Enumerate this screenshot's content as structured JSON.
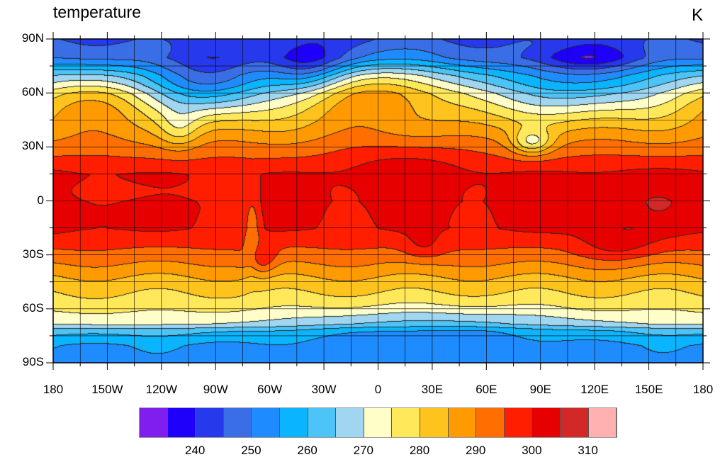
{
  "title": "temperature",
  "units": "K",
  "chart_data": {
    "type": "heatmap",
    "title": "temperature",
    "units": "K",
    "projection": "cylindrical equidistant",
    "lon_range": [
      -180,
      180
    ],
    "lat_range": [
      -90,
      90
    ],
    "grid": true,
    "lat_ticks": [
      {
        "v": 90,
        "label": "90N"
      },
      {
        "v": 60,
        "label": "60N"
      },
      {
        "v": 30,
        "label": "30N"
      },
      {
        "v": 0,
        "label": "0"
      },
      {
        "v": -30,
        "label": "30S"
      },
      {
        "v": -60,
        "label": "60S"
      },
      {
        "v": -90,
        "label": "90S"
      }
    ],
    "lon_ticks": [
      {
        "v": -180,
        "label": "180"
      },
      {
        "v": -150,
        "label": "150W"
      },
      {
        "v": -120,
        "label": "120W"
      },
      {
        "v": -90,
        "label": "90W"
      },
      {
        "v": -60,
        "label": "60W"
      },
      {
        "v": -30,
        "label": "30W"
      },
      {
        "v": 0,
        "label": "0"
      },
      {
        "v": 30,
        "label": "30E"
      },
      {
        "v": 60,
        "label": "60E"
      },
      {
        "v": 90,
        "label": "90E"
      },
      {
        "v": 120,
        "label": "120E"
      },
      {
        "v": 150,
        "label": "150E"
      },
      {
        "v": 180,
        "label": "180"
      }
    ],
    "colorbar": {
      "levels": [
        235,
        240,
        245,
        250,
        255,
        260,
        265,
        270,
        275,
        280,
        285,
        290,
        295,
        300,
        305,
        310
      ],
      "colors": [
        "#7f1eef",
        "#1e00fa",
        "#2639ec",
        "#3a6ee6",
        "#1e8cff",
        "#0ab4ff",
        "#4cc4f8",
        "#a0d6f0",
        "#fffdc8",
        "#ffe95a",
        "#ffc31e",
        "#ff9a00",
        "#ff6e00",
        "#ff1e00",
        "#e60000",
        "#d22828",
        "#ffb0b0"
      ],
      "labels": [
        {
          "v": 240,
          "label": "240"
        },
        {
          "v": 250,
          "label": "250"
        },
        {
          "v": 260,
          "label": "260"
        },
        {
          "v": 270,
          "label": "270"
        },
        {
          "v": 280,
          "label": "280"
        },
        {
          "v": 290,
          "label": "290"
        },
        {
          "v": 300,
          "label": "300"
        },
        {
          "v": 310,
          "label": "310"
        }
      ]
    }
  }
}
